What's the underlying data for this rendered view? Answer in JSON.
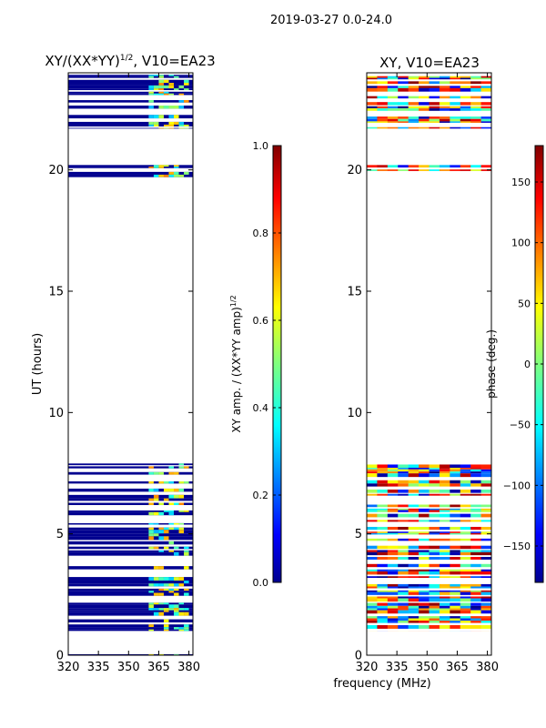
{
  "suptitle": "2019-03-27 0.0-24.0",
  "xlabel": "frequency (MHz)",
  "chart_data": [
    {
      "type": "heatmap",
      "title": "XY/(XX*YY)",
      "title_superscript": "1/2",
      "title_suffix": ", V10=EA23",
      "xlabel": "",
      "ylabel": "UT (hours)",
      "xlim": [
        320,
        382
      ],
      "ylim": [
        0,
        24
      ],
      "xticks": [
        "320",
        "335",
        "350",
        "365",
        "380"
      ],
      "xtick_values": [
        320,
        335,
        350,
        365,
        380
      ],
      "yticks": [
        "0",
        "5",
        "10",
        "15",
        "20"
      ],
      "ytick_values": [
        0,
        5,
        10,
        15,
        20
      ],
      "data_bands_hours": [
        [
          0.0,
          0.15
        ],
        [
          1.0,
          8.0
        ],
        [
          19.7,
          20.2
        ],
        [
          21.7,
          24.0
        ]
      ],
      "high_value_channel_range_mhz": [
        360,
        380
      ],
      "colorbar": {
        "label": "XY amp. / (XX*YY amp)",
        "label_superscript": "1/2",
        "range": [
          0.0,
          1.0
        ],
        "ticks": [
          "0.0",
          "0.2",
          "0.4",
          "0.6",
          "0.8",
          "1.0"
        ],
        "tick_values": [
          0.0,
          0.2,
          0.4,
          0.6,
          0.8,
          1.0
        ],
        "colormap": "jet"
      }
    },
    {
      "type": "heatmap",
      "title": "XY, V10=EA23",
      "xlabel": "frequency (MHz)",
      "ylabel": "",
      "xlim": [
        320,
        382
      ],
      "ylim": [
        0,
        24
      ],
      "xticks": [
        "320",
        "335",
        "350",
        "365",
        "380"
      ],
      "xtick_values": [
        320,
        335,
        350,
        365,
        380
      ],
      "yticks": [
        "0",
        "5",
        "10",
        "15",
        "20"
      ],
      "ytick_values": [
        0,
        5,
        10,
        15,
        20
      ],
      "data_bands_hours": [
        [
          0.0,
          0.15
        ],
        [
          1.0,
          8.0
        ],
        [
          19.7,
          20.2
        ],
        [
          21.7,
          24.0
        ]
      ],
      "colorbar": {
        "label": "phase (deg.)",
        "range": [
          -180,
          180
        ],
        "ticks": [
          "150",
          "100",
          "50",
          "0",
          "−50",
          "−100",
          "−150"
        ],
        "tick_values": [
          150,
          100,
          50,
          0,
          -50,
          -100,
          -150
        ],
        "colormap": "jet"
      }
    }
  ]
}
